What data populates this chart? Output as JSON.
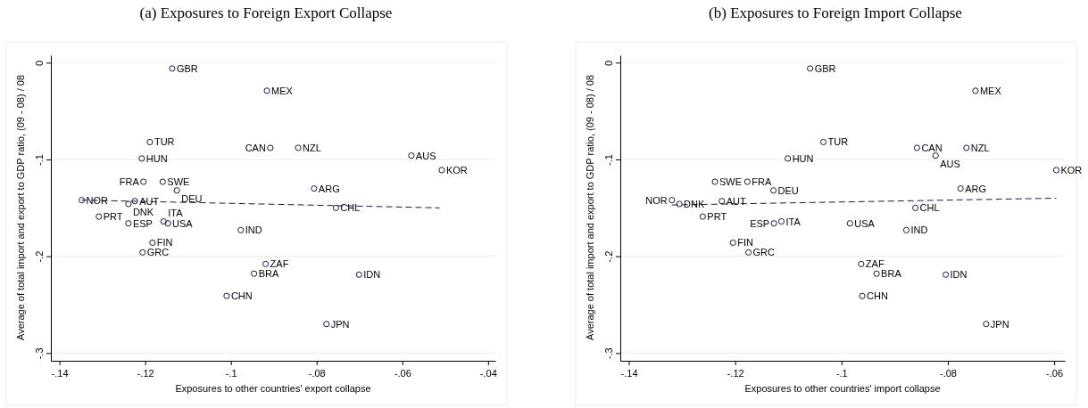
{
  "chart_data": [
    {
      "type": "scatter",
      "title": "(a) Exposures to Foreign Export Collapse",
      "xlabel": "Exposures to other countries' export collapse",
      "ylabel": "Average of total import and export to GDP ratio, (09 - 08) / 08",
      "xlim": [
        -0.142,
        -0.0383
      ],
      "ylim": [
        -0.308,
        0.0077
      ],
      "xticks": [
        {
          "value": -0.14,
          "label": "-.14"
        },
        {
          "value": -0.12,
          "label": "-.12"
        },
        {
          "value": -0.1,
          "label": "-.1"
        },
        {
          "value": -0.08,
          "label": "-.08"
        },
        {
          "value": -0.06,
          "label": "-.06"
        },
        {
          "value": -0.04,
          "label": "-.04"
        }
      ],
      "yticks": [
        0,
        {
          "value": -0.1,
          "label": "-.1"
        },
        {
          "value": -0.2,
          "label": "-.2"
        },
        {
          "value": -0.3,
          "label": "-.3"
        }
      ],
      "grid": "y",
      "marker": "circle",
      "series": [
        {
          "type": "scatter",
          "color": "#1a1a40",
          "x": [
            -0.1137,
            -0.1189,
            -0.1208,
            -0.1204,
            -0.1159,
            -0.1126,
            -0.1348,
            -0.1224,
            -0.1239,
            -0.1308,
            -0.1239,
            -0.1157,
            -0.1147,
            -0.0977,
            -0.1183,
            -0.1206,
            -0.101,
            -0.0946,
            -0.0919,
            -0.0916,
            -0.0908,
            -0.0843,
            -0.0579,
            -0.0508,
            -0.0806,
            -0.0755,
            -0.0701,
            -0.0777
          ],
          "values": [
            -0.006,
            -0.082,
            -0.099,
            -0.123,
            -0.123,
            -0.132,
            -0.142,
            -0.143,
            -0.146,
            -0.159,
            -0.166,
            -0.164,
            -0.166,
            -0.173,
            -0.186,
            -0.196,
            -0.241,
            -0.218,
            -0.208,
            -0.029,
            -0.088,
            -0.088,
            -0.096,
            -0.111,
            -0.13,
            -0.15,
            -0.219,
            -0.27
          ]
        },
        {
          "type": "line",
          "color": "#1a1a40",
          "line_style": "dashed",
          "marker": "none",
          "x": [
            -0.1348,
            -0.0513
          ],
          "values": [
            -0.142,
            -0.15
          ]
        }
      ],
      "annotations": [
        {
          "text": "GBR",
          "x": -0.1137,
          "y": -0.006
        },
        {
          "text": "TUR",
          "x": -0.1189,
          "y": -0.082
        },
        {
          "text": "HUN",
          "x": -0.1208,
          "y": -0.099
        },
        {
          "text": "FRA",
          "x": -0.1204,
          "y": -0.123
        },
        {
          "text": "SWE",
          "x": -0.1159,
          "y": -0.123
        },
        {
          "text": "DEU",
          "x": -0.1126,
          "y": -0.132
        },
        {
          "text": "NOR",
          "x": -0.1348,
          "y": -0.142
        },
        {
          "text": "AUT",
          "x": -0.1224,
          "y": -0.143
        },
        {
          "text": "DNK",
          "x": -0.1239,
          "y": -0.146
        },
        {
          "text": "PRT",
          "x": -0.1308,
          "y": -0.159
        },
        {
          "text": "ESP",
          "x": -0.1239,
          "y": -0.166
        },
        {
          "text": "ITA",
          "x": -0.1157,
          "y": -0.164
        },
        {
          "text": "USA",
          "x": -0.1147,
          "y": -0.166
        },
        {
          "text": "IND",
          "x": -0.0977,
          "y": -0.173
        },
        {
          "text": "FIN",
          "x": -0.1183,
          "y": -0.186
        },
        {
          "text": "GRC",
          "x": -0.1206,
          "y": -0.196
        },
        {
          "text": "CHN",
          "x": -0.101,
          "y": -0.241
        },
        {
          "text": "BRA",
          "x": -0.0946,
          "y": -0.218
        },
        {
          "text": "ZAF",
          "x": -0.0919,
          "y": -0.208
        },
        {
          "text": "MEX",
          "x": -0.0916,
          "y": -0.029
        },
        {
          "text": "CAN",
          "x": -0.0908,
          "y": -0.088
        },
        {
          "text": "NZL",
          "x": -0.0843,
          "y": -0.088
        },
        {
          "text": "AUS",
          "x": -0.0579,
          "y": -0.096
        },
        {
          "text": "KOR",
          "x": -0.0508,
          "y": -0.111
        },
        {
          "text": "ARG",
          "x": -0.0806,
          "y": -0.13
        },
        {
          "text": "CHL",
          "x": -0.0755,
          "y": -0.15
        },
        {
          "text": "IDN",
          "x": -0.0701,
          "y": -0.219
        },
        {
          "text": "JPN",
          "x": -0.0777,
          "y": -0.27
        }
      ]
    },
    {
      "type": "scatter",
      "title": "(b) Exposures to Foreign Import Collapse",
      "xlabel": "Exposures to other countries' import collapse",
      "ylabel": "Average of total import and export to GDP ratio, (09 - 08) / 08",
      "xlim": [
        -0.1416,
        -0.058
      ],
      "ylim": [
        -0.308,
        0.0077
      ],
      "xticks": [
        {
          "value": -0.14,
          "label": "-.14"
        },
        {
          "value": -0.12,
          "label": "-.12"
        },
        {
          "value": -0.1,
          "label": "-.1"
        },
        {
          "value": -0.08,
          "label": "-.08"
        },
        {
          "value": -0.06,
          "label": "-.06"
        }
      ],
      "yticks": [
        0,
        {
          "value": -0.1,
          "label": "-.1"
        },
        {
          "value": -0.2,
          "label": "-.2"
        },
        {
          "value": -0.3,
          "label": "-.3"
        }
      ],
      "grid": "y",
      "marker": "circle",
      "series": [
        {
          "type": "scatter",
          "color": "#1a1a40",
          "x": [
            -0.1059,
            -0.1034,
            -0.1101,
            -0.1177,
            -0.1238,
            -0.1128,
            -0.1319,
            -0.1225,
            -0.1305,
            -0.1261,
            -0.1127,
            -0.1113,
            -0.0984,
            -0.0878,
            -0.1204,
            -0.1175,
            -0.0961,
            -0.0934,
            -0.0963,
            -0.0748,
            -0.0858,
            -0.0765,
            -0.0823,
            -0.0596,
            -0.0776,
            -0.0861,
            -0.0804,
            -0.0728
          ],
          "values": [
            -0.006,
            -0.082,
            -0.099,
            -0.123,
            -0.123,
            -0.132,
            -0.142,
            -0.143,
            -0.146,
            -0.159,
            -0.166,
            -0.164,
            -0.166,
            -0.173,
            -0.186,
            -0.196,
            -0.241,
            -0.218,
            -0.208,
            -0.029,
            -0.088,
            -0.088,
            -0.096,
            -0.111,
            -0.13,
            -0.15,
            -0.219,
            -0.27
          ]
        },
        {
          "type": "line",
          "color": "#1a1a40",
          "line_style": "dashed",
          "marker": "none",
          "x": [
            -0.1319,
            -0.0596
          ],
          "values": [
            -0.147,
            -0.14
          ]
        }
      ],
      "annotations": [
        {
          "text": "GBR",
          "x": -0.1059,
          "y": -0.006
        },
        {
          "text": "TUR",
          "x": -0.1034,
          "y": -0.082
        },
        {
          "text": "HUN",
          "x": -0.1101,
          "y": -0.099
        },
        {
          "text": "FRA",
          "x": -0.1177,
          "y": -0.123
        },
        {
          "text": "SWE",
          "x": -0.1238,
          "y": -0.123
        },
        {
          "text": "DEU",
          "x": -0.1128,
          "y": -0.132
        },
        {
          "text": "NOR",
          "x": -0.1319,
          "y": -0.142
        },
        {
          "text": "AUT",
          "x": -0.1225,
          "y": -0.143
        },
        {
          "text": "DNK",
          "x": -0.1305,
          "y": -0.146
        },
        {
          "text": "PRT",
          "x": -0.1261,
          "y": -0.159
        },
        {
          "text": "ESP",
          "x": -0.1127,
          "y": -0.166
        },
        {
          "text": "ITA",
          "x": -0.1113,
          "y": -0.164
        },
        {
          "text": "USA",
          "x": -0.0984,
          "y": -0.166
        },
        {
          "text": "IND",
          "x": -0.0878,
          "y": -0.173
        },
        {
          "text": "FIN",
          "x": -0.1204,
          "y": -0.186
        },
        {
          "text": "GRC",
          "x": -0.1175,
          "y": -0.196
        },
        {
          "text": "CHN",
          "x": -0.0961,
          "y": -0.241
        },
        {
          "text": "BRA",
          "x": -0.0934,
          "y": -0.218
        },
        {
          "text": "ZAF",
          "x": -0.0963,
          "y": -0.208
        },
        {
          "text": "MEX",
          "x": -0.0748,
          "y": -0.029
        },
        {
          "text": "CAN",
          "x": -0.0858,
          "y": -0.088
        },
        {
          "text": "NZL",
          "x": -0.0765,
          "y": -0.088
        },
        {
          "text": "AUS",
          "x": -0.0823,
          "y": -0.096
        },
        {
          "text": "KOR",
          "x": -0.0596,
          "y": -0.111
        },
        {
          "text": "ARG",
          "x": -0.0776,
          "y": -0.13
        },
        {
          "text": "CHL",
          "x": -0.0861,
          "y": -0.15
        },
        {
          "text": "IDN",
          "x": -0.0804,
          "y": -0.219
        },
        {
          "text": "JPN",
          "x": -0.0728,
          "y": -0.27
        }
      ]
    }
  ]
}
